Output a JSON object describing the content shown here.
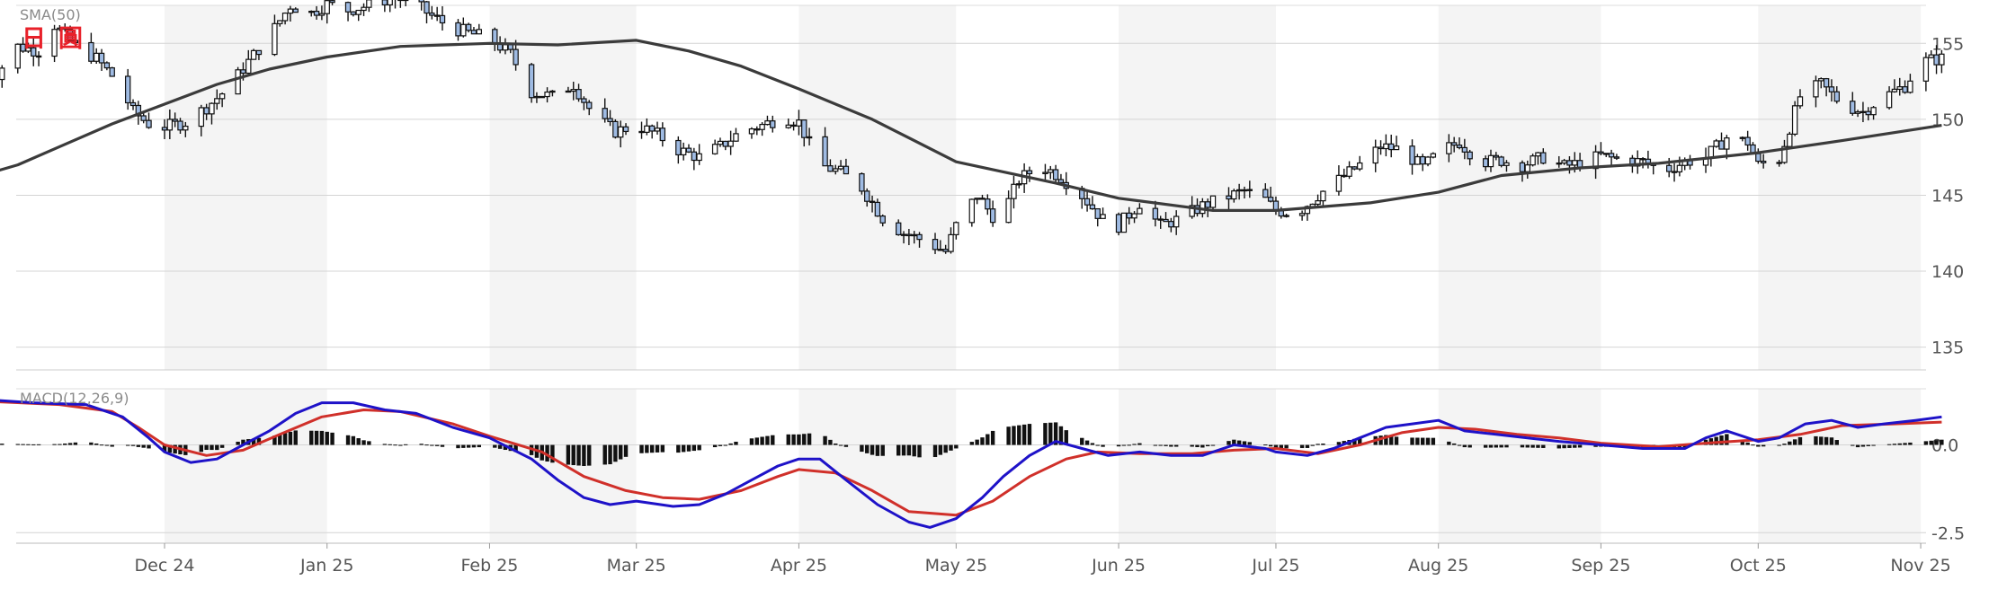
{
  "chart_data": [
    {
      "type": "candlestick",
      "title": "",
      "indicator_label": "SMA(50)",
      "brand_label": "日圓",
      "ylim": [
        133.5,
        157.5
      ],
      "y_ticks": [
        135,
        140,
        145,
        150,
        155
      ],
      "y_tick_labels": [
        "135",
        "140",
        "145",
        "150",
        "155"
      ],
      "x_range_days": [
        -35,
        305
      ],
      "month_ticks": [
        {
          "label": "Dec 24",
          "day": 0
        },
        {
          "label": "Jan 25",
          "day": 31
        },
        {
          "label": "Feb 25",
          "day": 62
        },
        {
          "label": "Mar 25",
          "day": 90
        },
        {
          "label": "Apr 25",
          "day": 121
        },
        {
          "label": "May 25",
          "day": 151
        },
        {
          "label": "Jun 25",
          "day": 182
        },
        {
          "label": "Jul 25",
          "day": 212
        },
        {
          "label": "Aug 25",
          "day": 243
        },
        {
          "label": "Sep 25",
          "day": 274
        },
        {
          "label": "Oct 25",
          "day": 304
        },
        {
          "label": "Nov 25",
          "day": 335
        }
      ],
      "close_path": [
        [
          -35,
          151.5
        ],
        [
          -32,
          153.0
        ],
        [
          -28,
          154.8
        ],
        [
          -24,
          154.5
        ],
        [
          -21,
          156.2
        ],
        [
          -17,
          154.8
        ],
        [
          -13,
          154.0
        ],
        [
          -9,
          152.5
        ],
        [
          -6,
          150.5
        ],
        [
          -3,
          149.7
        ],
        [
          0,
          149.5
        ],
        [
          4,
          149.8
        ],
        [
          8,
          150.8
        ],
        [
          12,
          152.0
        ],
        [
          16,
          153.8
        ],
        [
          20,
          155.5
        ],
        [
          24,
          157.5
        ],
        [
          28,
          157.0
        ],
        [
          31,
          157.6
        ],
        [
          35,
          157.2
        ],
        [
          39,
          157.5
        ],
        [
          43,
          158.0
        ],
        [
          47,
          157.8
        ],
        [
          51,
          156.8
        ],
        [
          55,
          156.0
        ],
        [
          58,
          155.7
        ],
        [
          62,
          155.3
        ],
        [
          66,
          154.3
        ],
        [
          70,
          151.8
        ],
        [
          74,
          151.5
        ],
        [
          78,
          152.3
        ],
        [
          82,
          150.2
        ],
        [
          86,
          149.2
        ],
        [
          90,
          149.6
        ],
        [
          94,
          149.0
        ],
        [
          98,
          148.0
        ],
        [
          102,
          147.5
        ],
        [
          106,
          148.2
        ],
        [
          110,
          149.2
        ],
        [
          114,
          149.6
        ],
        [
          118,
          150.2
        ],
        [
          121,
          149.8
        ],
        [
          125,
          147.0
        ],
        [
          129,
          146.5
        ],
        [
          133,
          145.5
        ],
        [
          137,
          143.5
        ],
        [
          141,
          142.5
        ],
        [
          145,
          142.0
        ],
        [
          149,
          141.3
        ],
        [
          151,
          143.0
        ],
        [
          155,
          145.0
        ],
        [
          159,
          143.2
        ],
        [
          163,
          146.0
        ],
        [
          167,
          147.0
        ],
        [
          171,
          146.2
        ],
        [
          175,
          145.0
        ],
        [
          179,
          143.4
        ],
        [
          182,
          143.0
        ],
        [
          186,
          144.5
        ],
        [
          190,
          143.0
        ],
        [
          194,
          143.5
        ],
        [
          198,
          144.3
        ],
        [
          202,
          144.8
        ],
        [
          206,
          145.3
        ],
        [
          210,
          144.7
        ],
        [
          212,
          144.0
        ],
        [
          216,
          143.8
        ],
        [
          220,
          145.0
        ],
        [
          224,
          146.0
        ],
        [
          228,
          147.0
        ],
        [
          232,
          148.2
        ],
        [
          236,
          148.0
        ],
        [
          240,
          146.8
        ],
        [
          243,
          147.8
        ],
        [
          247,
          148.5
        ],
        [
          251,
          147.2
        ],
        [
          255,
          147.3
        ],
        [
          259,
          147.0
        ],
        [
          263,
          147.5
        ],
        [
          267,
          146.9
        ],
        [
          271,
          147.2
        ],
        [
          274,
          147.6
        ],
        [
          278,
          147.3
        ],
        [
          282,
          147.2
        ],
        [
          286,
          146.6
        ],
        [
          290,
          147.2
        ],
        [
          294,
          147.5
        ],
        [
          298,
          148.8
        ],
        [
          302,
          148.5
        ],
        [
          304,
          147.0
        ],
        [
          308,
          147.4
        ],
        [
          312,
          151.5
        ],
        [
          316,
          152.3
        ],
        [
          320,
          151.0
        ],
        [
          324,
          150.5
        ],
        [
          328,
          151.5
        ],
        [
          332,
          152.2
        ],
        [
          335,
          153.8
        ],
        [
          339,
          154.0
        ]
      ],
      "sma_path": [
        [
          -35,
          146.3
        ],
        [
          -28,
          147.0
        ],
        [
          -20,
          148.2
        ],
        [
          -10,
          149.7
        ],
        [
          0,
          151.0
        ],
        [
          10,
          152.3
        ],
        [
          20,
          153.3
        ],
        [
          31,
          154.1
        ],
        [
          45,
          154.8
        ],
        [
          62,
          155.0
        ],
        [
          75,
          154.9
        ],
        [
          90,
          155.2
        ],
        [
          100,
          154.5
        ],
        [
          110,
          153.5
        ],
        [
          121,
          152.0
        ],
        [
          135,
          150.0
        ],
        [
          151,
          147.2
        ],
        [
          170,
          145.8
        ],
        [
          182,
          144.8
        ],
        [
          200,
          144.0
        ],
        [
          212,
          144.0
        ],
        [
          230,
          144.5
        ],
        [
          243,
          145.2
        ],
        [
          255,
          146.3
        ],
        [
          270,
          146.8
        ],
        [
          285,
          147.1
        ],
        [
          304,
          147.8
        ],
        [
          320,
          148.6
        ],
        [
          339,
          149.6
        ]
      ]
    },
    {
      "type": "macd",
      "indicator_label": "MACD(12,26,9)",
      "ylim": [
        -2.8,
        1.6
      ],
      "y_ticks": [
        0.0,
        -2.5
      ],
      "y_tick_labels": [
        "0.0",
        "-2.5"
      ],
      "macd_path": [
        [
          -35,
          1.3
        ],
        [
          -25,
          1.2
        ],
        [
          -15,
          1.15
        ],
        [
          -8,
          0.8
        ],
        [
          -3,
          0.2
        ],
        [
          0,
          -0.2
        ],
        [
          5,
          -0.5
        ],
        [
          10,
          -0.4
        ],
        [
          15,
          0.0
        ],
        [
          20,
          0.4
        ],
        [
          25,
          0.9
        ],
        [
          30,
          1.2
        ],
        [
          36,
          1.2
        ],
        [
          42,
          1.0
        ],
        [
          48,
          0.9
        ],
        [
          55,
          0.5
        ],
        [
          62,
          0.2
        ],
        [
          70,
          -0.4
        ],
        [
          75,
          -1.0
        ],
        [
          80,
          -1.5
        ],
        [
          85,
          -1.7
        ],
        [
          90,
          -1.6
        ],
        [
          97,
          -1.75
        ],
        [
          102,
          -1.7
        ],
        [
          107,
          -1.4
        ],
        [
          112,
          -1.0
        ],
        [
          117,
          -0.6
        ],
        [
          121,
          -0.4
        ],
        [
          125,
          -0.4
        ],
        [
          130,
          -1.0
        ],
        [
          136,
          -1.7
        ],
        [
          142,
          -2.2
        ],
        [
          146,
          -2.35
        ],
        [
          151,
          -2.1
        ],
        [
          156,
          -1.5
        ],
        [
          160,
          -0.9
        ],
        [
          165,
          -0.3
        ],
        [
          170,
          0.1
        ],
        [
          175,
          -0.1
        ],
        [
          180,
          -0.3
        ],
        [
          186,
          -0.2
        ],
        [
          192,
          -0.3
        ],
        [
          198,
          -0.3
        ],
        [
          204,
          0.0
        ],
        [
          210,
          -0.1
        ],
        [
          212,
          -0.2
        ],
        [
          218,
          -0.3
        ],
        [
          223,
          -0.1
        ],
        [
          228,
          0.2
        ],
        [
          233,
          0.5
        ],
        [
          238,
          0.6
        ],
        [
          243,
          0.7
        ],
        [
          248,
          0.4
        ],
        [
          254,
          0.3
        ],
        [
          260,
          0.2
        ],
        [
          266,
          0.1
        ],
        [
          274,
          0.0
        ],
        [
          282,
          -0.1
        ],
        [
          290,
          -0.1
        ],
        [
          294,
          0.2
        ],
        [
          298,
          0.4
        ],
        [
          304,
          0.1
        ],
        [
          308,
          0.2
        ],
        [
          313,
          0.6
        ],
        [
          318,
          0.7
        ],
        [
          323,
          0.5
        ],
        [
          328,
          0.6
        ],
        [
          334,
          0.7
        ],
        [
          339,
          0.8
        ]
      ],
      "signal_path": [
        [
          -35,
          1.25
        ],
        [
          -20,
          1.15
        ],
        [
          -10,
          0.95
        ],
        [
          -5,
          0.5
        ],
        [
          0,
          0.0
        ],
        [
          8,
          -0.3
        ],
        [
          15,
          -0.15
        ],
        [
          22,
          0.3
        ],
        [
          30,
          0.8
        ],
        [
          38,
          1.0
        ],
        [
          45,
          0.95
        ],
        [
          55,
          0.6
        ],
        [
          62,
          0.25
        ],
        [
          72,
          -0.2
        ],
        [
          80,
          -0.9
        ],
        [
          88,
          -1.3
        ],
        [
          95,
          -1.5
        ],
        [
          102,
          -1.55
        ],
        [
          110,
          -1.3
        ],
        [
          117,
          -0.9
        ],
        [
          121,
          -0.7
        ],
        [
          128,
          -0.8
        ],
        [
          135,
          -1.3
        ],
        [
          142,
          -1.9
        ],
        [
          151,
          -2.0
        ],
        [
          158,
          -1.6
        ],
        [
          165,
          -0.9
        ],
        [
          172,
          -0.4
        ],
        [
          178,
          -0.2
        ],
        [
          186,
          -0.25
        ],
        [
          196,
          -0.25
        ],
        [
          204,
          -0.15
        ],
        [
          212,
          -0.1
        ],
        [
          220,
          -0.25
        ],
        [
          228,
          0.0
        ],
        [
          236,
          0.35
        ],
        [
          243,
          0.5
        ],
        [
          250,
          0.45
        ],
        [
          258,
          0.3
        ],
        [
          266,
          0.2
        ],
        [
          274,
          0.05
        ],
        [
          285,
          -0.05
        ],
        [
          294,
          0.05
        ],
        [
          304,
          0.15
        ],
        [
          312,
          0.3
        ],
        [
          320,
          0.55
        ],
        [
          330,
          0.6
        ],
        [
          339,
          0.65
        ]
      ]
    }
  ]
}
